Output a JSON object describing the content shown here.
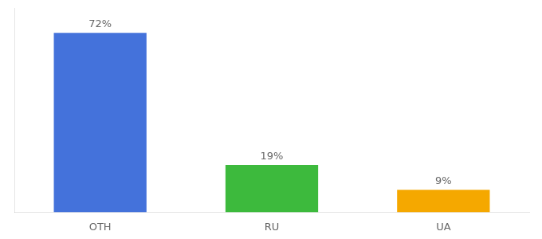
{
  "chart_data": {
    "type": "bar",
    "categories": [
      "OTH",
      "RU",
      "UA"
    ],
    "values": [
      72,
      19,
      9
    ],
    "value_labels": [
      "72%",
      "19%",
      "9%"
    ],
    "colors": [
      "#4472db",
      "#3dba3d",
      "#f5a800"
    ],
    "ylim": [
      0,
      82
    ],
    "data_labels": true,
    "tick_labels": "x",
    "grid": false
  }
}
